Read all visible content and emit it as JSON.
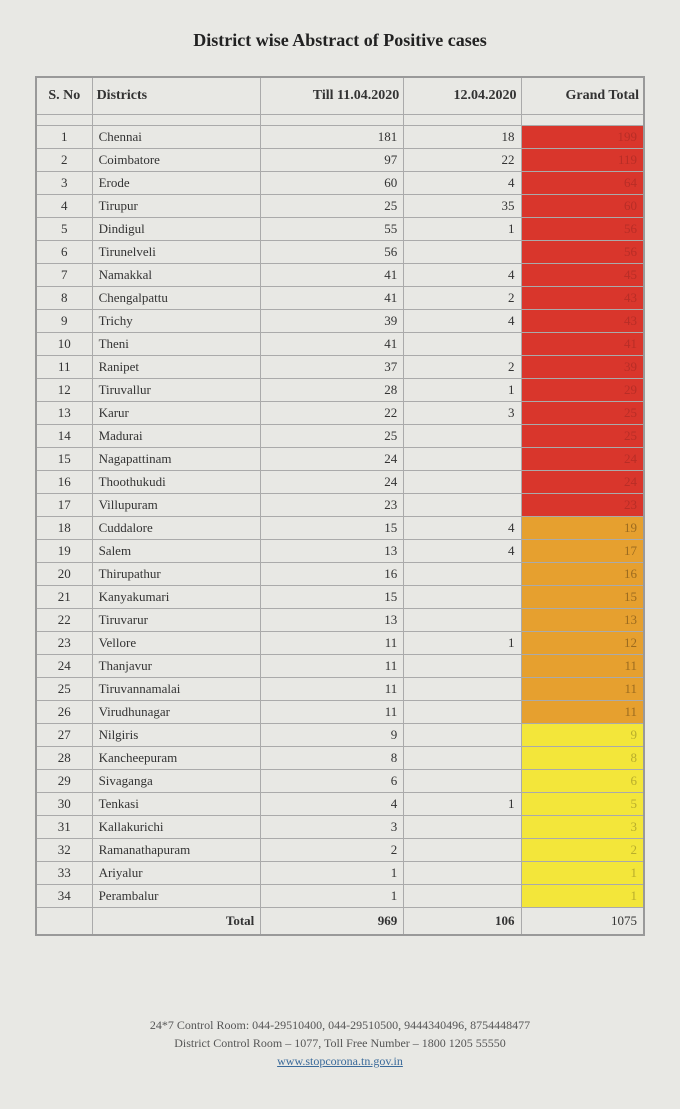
{
  "title": "District wise Abstract of Positive cases",
  "headers": {
    "sno": "S. No",
    "district": "Districts",
    "till": "Till 11.04.2020",
    "day": "12.04.2020",
    "total": "Grand Total"
  },
  "colors": {
    "red": "#d9362c",
    "orange": "#e6a02f",
    "yellow": "#f3e63a",
    "total_text_red": "#b82d26",
    "total_text_orange": "#9c6b1f",
    "total_text_yellow": "#b8ad2c"
  },
  "rows": [
    {
      "sno": 1,
      "district": "Chennai",
      "till": 181,
      "day": 18,
      "total": 199,
      "zone": "red"
    },
    {
      "sno": 2,
      "district": "Coimbatore",
      "till": 97,
      "day": 22,
      "total": 119,
      "zone": "red"
    },
    {
      "sno": 3,
      "district": "Erode",
      "till": 60,
      "day": 4,
      "total": 64,
      "zone": "red"
    },
    {
      "sno": 4,
      "district": "Tirupur",
      "till": 25,
      "day": 35,
      "total": 60,
      "zone": "red"
    },
    {
      "sno": 5,
      "district": "Dindigul",
      "till": 55,
      "day": 1,
      "total": 56,
      "zone": "red"
    },
    {
      "sno": 6,
      "district": "Tirunelveli",
      "till": 56,
      "day": "",
      "total": 56,
      "zone": "red"
    },
    {
      "sno": 7,
      "district": "Namakkal",
      "till": 41,
      "day": 4,
      "total": 45,
      "zone": "red"
    },
    {
      "sno": 8,
      "district": "Chengalpattu",
      "till": 41,
      "day": 2,
      "total": 43,
      "zone": "red"
    },
    {
      "sno": 9,
      "district": "Trichy",
      "till": 39,
      "day": 4,
      "total": 43,
      "zone": "red"
    },
    {
      "sno": 10,
      "district": "Theni",
      "till": 41,
      "day": "",
      "total": 41,
      "zone": "red"
    },
    {
      "sno": 11,
      "district": "Ranipet",
      "till": 37,
      "day": 2,
      "total": 39,
      "zone": "red"
    },
    {
      "sno": 12,
      "district": "Tiruvallur",
      "till": 28,
      "day": 1,
      "total": 29,
      "zone": "red"
    },
    {
      "sno": 13,
      "district": "Karur",
      "till": 22,
      "day": 3,
      "total": 25,
      "zone": "red"
    },
    {
      "sno": 14,
      "district": "Madurai",
      "till": 25,
      "day": "",
      "total": 25,
      "zone": "red"
    },
    {
      "sno": 15,
      "district": "Nagapattinam",
      "till": 24,
      "day": "",
      "total": 24,
      "zone": "red"
    },
    {
      "sno": 16,
      "district": "Thoothukudi",
      "till": 24,
      "day": "",
      "total": 24,
      "zone": "red"
    },
    {
      "sno": 17,
      "district": "Villupuram",
      "till": 23,
      "day": "",
      "total": 23,
      "zone": "red"
    },
    {
      "sno": 18,
      "district": "Cuddalore",
      "till": 15,
      "day": 4,
      "total": 19,
      "zone": "orange"
    },
    {
      "sno": 19,
      "district": "Salem",
      "till": 13,
      "day": 4,
      "total": 17,
      "zone": "orange"
    },
    {
      "sno": 20,
      "district": "Thirupathur",
      "till": 16,
      "day": "",
      "total": 16,
      "zone": "orange"
    },
    {
      "sno": 21,
      "district": "Kanyakumari",
      "till": 15,
      "day": "",
      "total": 15,
      "zone": "orange"
    },
    {
      "sno": 22,
      "district": "Tiruvarur",
      "till": 13,
      "day": "",
      "total": 13,
      "zone": "orange"
    },
    {
      "sno": 23,
      "district": "Vellore",
      "till": 11,
      "day": 1,
      "total": 12,
      "zone": "orange"
    },
    {
      "sno": 24,
      "district": "Thanjavur",
      "till": 11,
      "day": "",
      "total": 11,
      "zone": "orange"
    },
    {
      "sno": 25,
      "district": "Tiruvannamalai",
      "till": 11,
      "day": "",
      "total": 11,
      "zone": "orange"
    },
    {
      "sno": 26,
      "district": "Virudhunagar",
      "till": 11,
      "day": "",
      "total": 11,
      "zone": "orange"
    },
    {
      "sno": 27,
      "district": "Nilgiris",
      "till": 9,
      "day": "",
      "total": 9,
      "zone": "yellow"
    },
    {
      "sno": 28,
      "district": "Kancheepuram",
      "till": 8,
      "day": "",
      "total": 8,
      "zone": "yellow"
    },
    {
      "sno": 29,
      "district": "Sivaganga",
      "till": 6,
      "day": "",
      "total": 6,
      "zone": "yellow"
    },
    {
      "sno": 30,
      "district": "Tenkasi",
      "till": 4,
      "day": 1,
      "total": 5,
      "zone": "yellow"
    },
    {
      "sno": 31,
      "district": "Kallakurichi",
      "till": 3,
      "day": "",
      "total": 3,
      "zone": "yellow"
    },
    {
      "sno": 32,
      "district": "Ramanathapuram",
      "till": 2,
      "day": "",
      "total": 2,
      "zone": "yellow"
    },
    {
      "sno": 33,
      "district": "Ariyalur",
      "till": 1,
      "day": "",
      "total": 1,
      "zone": "yellow"
    },
    {
      "sno": 34,
      "district": "Perambalur",
      "till": 1,
      "day": "",
      "total": 1,
      "zone": "yellow"
    }
  ],
  "totals": {
    "label": "Total",
    "till": 969,
    "day": 106,
    "grand": 1075
  },
  "footer": {
    "line1": "24*7 Control Room: 044-29510400, 044-29510500, 9444340496, 8754448477",
    "line2": "District Control Room – 1077, Toll Free Number – 1800 1205 55550",
    "link": "www.stopcorona.tn.gov.in"
  }
}
